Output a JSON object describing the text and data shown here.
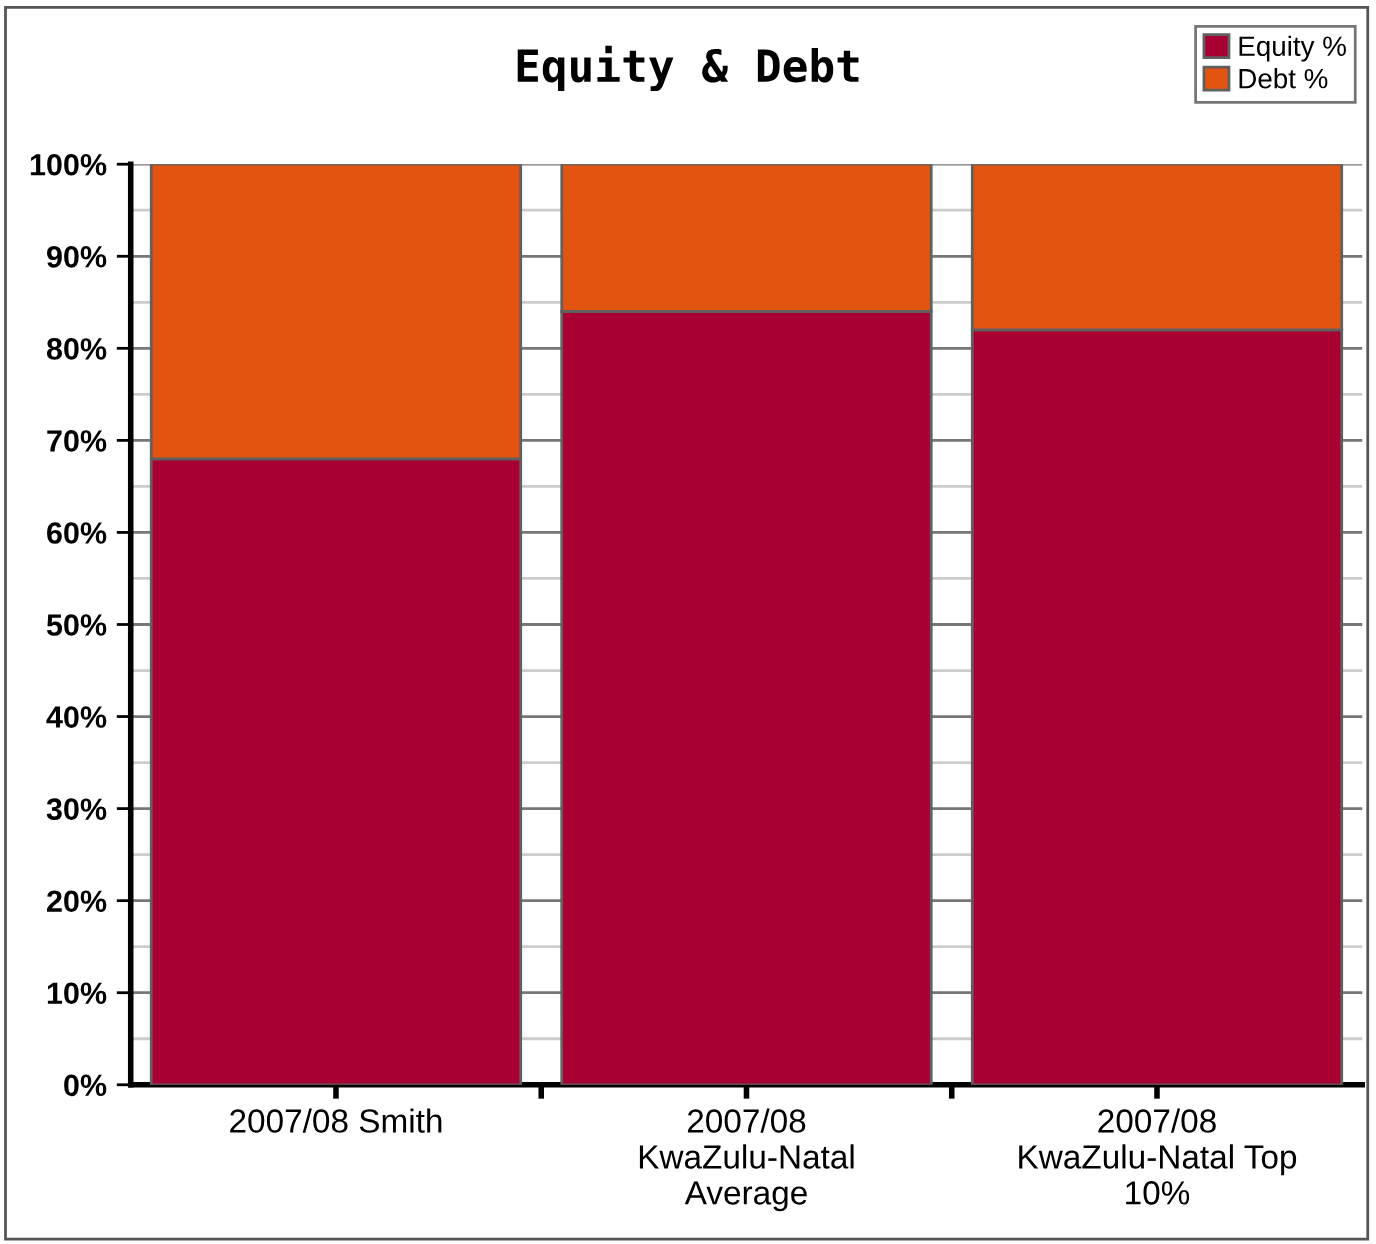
{
  "chart_data": {
    "type": "bar",
    "title": "Equity & Debt",
    "stacked": true,
    "categories": [
      "2007/08 Smith",
      "2007/08 KwaZulu-Natal Average",
      "2007/08 KwaZulu-Natal Top 10%"
    ],
    "series": [
      {
        "name": "Equity %",
        "color": "#a80032",
        "values": [
          68,
          84,
          82
        ]
      },
      {
        "name": "Debt %",
        "color": "#e25410",
        "values": [
          32,
          16,
          18
        ]
      }
    ],
    "ylim": [
      0,
      100
    ],
    "yticks": [
      {
        "value": 0,
        "label": "0%"
      },
      {
        "value": 10,
        "label": "10%"
      },
      {
        "value": 20,
        "label": "20%"
      },
      {
        "value": 30,
        "label": "30%"
      },
      {
        "value": 40,
        "label": "40%"
      },
      {
        "value": 50,
        "label": "50%"
      },
      {
        "value": 60,
        "label": "60%"
      },
      {
        "value": 70,
        "label": "70%"
      },
      {
        "value": 80,
        "label": "80%"
      },
      {
        "value": 90,
        "label": "90%"
      },
      {
        "value": 100,
        "label": "100%"
      }
    ],
    "grid": "y",
    "legend": "top right"
  }
}
